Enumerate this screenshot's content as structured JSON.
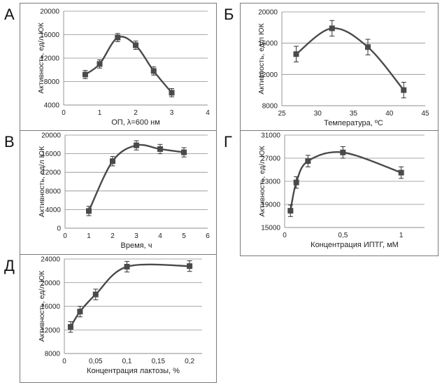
{
  "chart_data": [
    {
      "letter": "А",
      "type": "line",
      "xlabel": "ОП, λ=600 нм",
      "ylabel": "Активность, ед/л ЮК",
      "xlim": [
        0,
        4
      ],
      "ylim": [
        4000,
        20000
      ],
      "xticks": [
        0,
        1,
        2,
        3,
        4
      ],
      "xtick_labels": [
        "0",
        "1",
        "2",
        "3",
        "4"
      ],
      "yticks": [
        4000,
        8000,
        12000,
        16000,
        20000
      ],
      "ytick_labels": [
        "4000",
        "8000",
        "12000",
        "16000",
        "20000"
      ],
      "grid": "horizontal",
      "series": [
        {
          "name": "А",
          "x": [
            0.6,
            1.0,
            1.5,
            2.0,
            2.5,
            3.0
          ],
          "y": [
            9200,
            11000,
            15500,
            14200,
            9800,
            6100
          ],
          "err": [
            700,
            700,
            700,
            700,
            700,
            700
          ]
        }
      ]
    },
    {
      "letter": "Б",
      "type": "line",
      "xlabel": "Температура, ºС",
      "ylabel": "Активность, ед/л ЮК",
      "xlim": [
        25,
        45
      ],
      "ylim": [
        8000,
        20000
      ],
      "xticks": [
        25,
        30,
        35,
        40,
        45
      ],
      "xtick_labels": [
        "25",
        "30",
        "35",
        "40",
        "45"
      ],
      "yticks": [
        8000,
        12000,
        16000,
        20000
      ],
      "ytick_labels": [
        "8000",
        "12000",
        "16000",
        "20000"
      ],
      "grid": "horizontal",
      "series": [
        {
          "name": "Б",
          "x": [
            27,
            32,
            37,
            42
          ],
          "y": [
            14600,
            17900,
            15500,
            10000
          ],
          "err": [
            1000,
            1000,
            1000,
            1000
          ]
        }
      ]
    },
    {
      "letter": "В",
      "type": "line",
      "xlabel": "Время, ч",
      "ylabel": "Активность, ед/л ЮК",
      "xlim": [
        0,
        6
      ],
      "ylim": [
        0,
        20000
      ],
      "xticks": [
        0,
        1,
        2,
        3,
        4,
        5,
        6
      ],
      "xtick_labels": [
        "0",
        "1",
        "2",
        "3",
        "4",
        "5",
        "6"
      ],
      "yticks": [
        0,
        4000,
        8000,
        12000,
        16000,
        20000
      ],
      "ytick_labels": [
        "0",
        "4000",
        "8000",
        "12000",
        "16000",
        "20000"
      ],
      "grid": "horizontal",
      "series": [
        {
          "name": "В",
          "x": [
            1,
            2,
            3,
            4,
            5
          ],
          "y": [
            3700,
            14400,
            17800,
            17000,
            16300
          ],
          "err": [
            1000,
            1000,
            1000,
            1000,
            1000
          ]
        }
      ]
    },
    {
      "letter": "Г",
      "type": "line",
      "xlabel": "Концентрация ИПТГ, мМ",
      "ylabel": "Активность, ед/л ЮК",
      "xlim": [
        0,
        1.2
      ],
      "ylim": [
        15000,
        31000
      ],
      "xticks": [
        0,
        0.5,
        1
      ],
      "xtick_labels": [
        "0",
        "0,5",
        "1"
      ],
      "yticks": [
        15000,
        19000,
        23000,
        27000,
        31000
      ],
      "ytick_labels": [
        "15000",
        "19000",
        "23000",
        "27000",
        "31000"
      ],
      "grid": "horizontal",
      "series": [
        {
          "name": "Г",
          "x": [
            0.05,
            0.1,
            0.2,
            0.5,
            1.0
          ],
          "y": [
            17900,
            22800,
            26500,
            28000,
            24500
          ],
          "err": [
            1000,
            1000,
            1000,
            1000,
            1000
          ]
        }
      ]
    },
    {
      "letter": "Д",
      "type": "line",
      "xlabel": "Концентрация лактозы, %",
      "ylabel": "Активность, ед/л ЮК",
      "xlim": [
        0,
        0.22
      ],
      "ylim": [
        8000,
        24000
      ],
      "xticks": [
        0,
        0.05,
        0.1,
        0.15,
        0.2
      ],
      "xtick_labels": [
        "0",
        "0,05",
        "0,1",
        "0,15",
        "0,2"
      ],
      "yticks": [
        8000,
        12000,
        16000,
        20000,
        24000
      ],
      "ytick_labels": [
        "8000",
        "12000",
        "16000",
        "20000",
        "24000"
      ],
      "grid": "horizontal",
      "series": [
        {
          "name": "Д",
          "x": [
            0.01,
            0.025,
            0.05,
            0.1,
            0.2
          ],
          "y": [
            12500,
            15100,
            18000,
            22700,
            22800
          ],
          "err": [
            900,
            900,
            900,
            900,
            900
          ]
        }
      ]
    }
  ]
}
